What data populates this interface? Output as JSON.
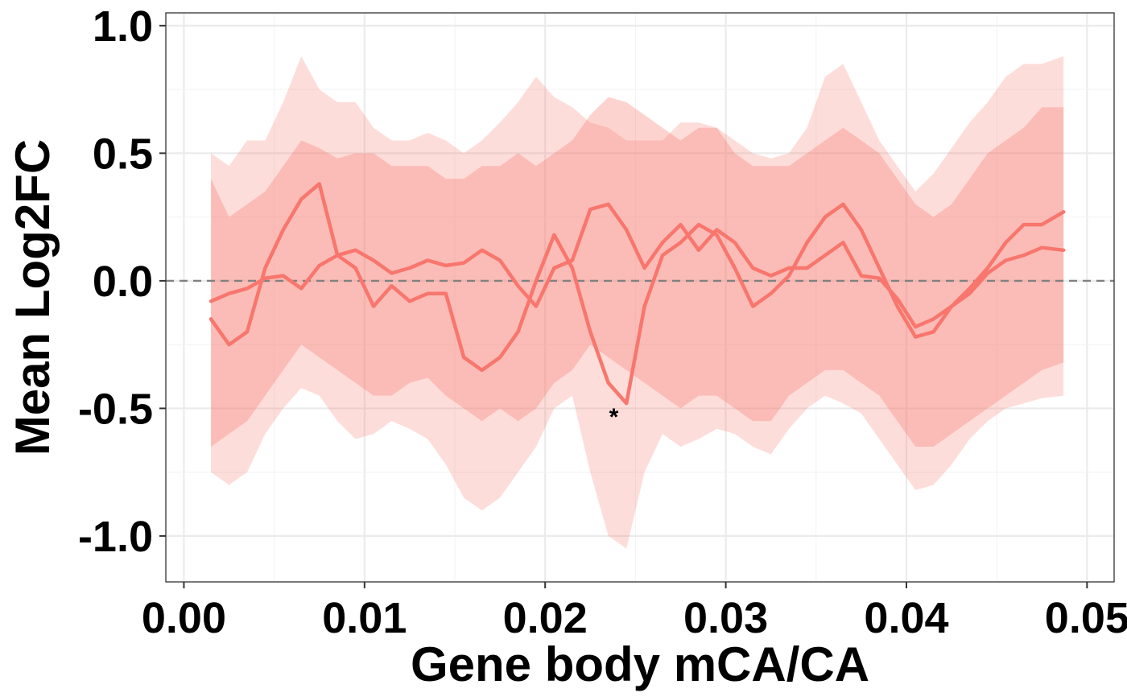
{
  "chart_data": {
    "type": "line",
    "xlabel": "Gene body mCA/CA",
    "ylabel": "Mean Log2FC",
    "xlim": [
      -0.001,
      0.0515
    ],
    "ylim": [
      -1.18,
      1.05
    ],
    "x_ticks": [
      0.0,
      0.01,
      0.02,
      0.03,
      0.04,
      0.05
    ],
    "x_tick_labels": [
      "0.00",
      "0.01",
      "0.02",
      "0.03",
      "0.04",
      "0.05"
    ],
    "y_ticks": [
      -1.0,
      -0.5,
      0.0,
      0.5,
      1.0
    ],
    "y_tick_labels": [
      "-1.0",
      "-0.5",
      "0.0",
      "0.5",
      "1.0"
    ],
    "grid": true,
    "reference_line": {
      "y": 0,
      "style": "dashed",
      "color": "#808080"
    },
    "x": [
      0.0015,
      0.0025,
      0.0035,
      0.0045,
      0.0055,
      0.0065,
      0.0075,
      0.0085,
      0.0095,
      0.0105,
      0.0115,
      0.0125,
      0.0135,
      0.0145,
      0.0155,
      0.0165,
      0.0175,
      0.0185,
      0.0195,
      0.0205,
      0.0215,
      0.0225,
      0.0235,
      0.0245,
      0.0255,
      0.0265,
      0.0275,
      0.0285,
      0.0295,
      0.0305,
      0.0315,
      0.0325,
      0.0335,
      0.0345,
      0.0355,
      0.0365,
      0.0375,
      0.0385,
      0.0395,
      0.0405,
      0.0415,
      0.0425,
      0.0435,
      0.0445,
      0.0455,
      0.0465,
      0.0475,
      0.0487
    ],
    "series": [
      {
        "color": "#F8766D",
        "values": [
          -0.08,
          -0.05,
          -0.03,
          0.01,
          0.02,
          -0.03,
          0.06,
          0.1,
          0.12,
          0.08,
          0.03,
          0.05,
          0.08,
          0.06,
          0.07,
          0.12,
          0.08,
          -0.02,
          -0.1,
          0.05,
          0.08,
          0.28,
          0.3,
          0.2,
          0.05,
          0.15,
          0.22,
          0.12,
          0.2,
          0.15,
          0.05,
          0.02,
          0.05,
          0.05,
          0.1,
          0.15,
          0.02,
          0.01,
          -0.07,
          -0.18,
          -0.15,
          -0.1,
          -0.05,
          0.03,
          0.08,
          0.1,
          0.13,
          0.12
        ],
        "band_inner": {
          "upper": [
            0.4,
            0.25,
            0.3,
            0.35,
            0.45,
            0.55,
            0.52,
            0.48,
            0.5,
            0.5,
            0.45,
            0.45,
            0.45,
            0.4,
            0.4,
            0.45,
            0.45,
            0.5,
            0.45,
            0.5,
            0.55,
            0.65,
            0.72,
            0.7,
            0.65,
            0.6,
            0.55,
            0.6,
            0.6,
            0.5,
            0.45,
            0.45,
            0.45,
            0.5,
            0.55,
            0.6,
            0.55,
            0.5,
            0.4,
            0.3,
            0.25,
            0.3,
            0.4,
            0.5,
            0.55,
            0.6,
            0.68,
            0.68
          ],
          "lower": [
            -0.65,
            -0.6,
            -0.55,
            -0.45,
            -0.35,
            -0.25,
            -0.3,
            -0.35,
            -0.4,
            -0.45,
            -0.45,
            -0.4,
            -0.38,
            -0.45,
            -0.5,
            -0.55,
            -0.5,
            -0.55,
            -0.5,
            -0.4,
            -0.35,
            -0.25,
            -0.3,
            -0.35,
            -0.4,
            -0.45,
            -0.5,
            -0.45,
            -0.45,
            -0.5,
            -0.55,
            -0.55,
            -0.45,
            -0.4,
            -0.35,
            -0.35,
            -0.4,
            -0.45,
            -0.55,
            -0.65,
            -0.65,
            -0.6,
            -0.55,
            -0.5,
            -0.45,
            -0.4,
            -0.35,
            -0.32
          ]
        }
      },
      {
        "color": "#F8766D",
        "values": [
          -0.15,
          -0.25,
          -0.2,
          0.05,
          0.2,
          0.32,
          0.38,
          0.1,
          0.05,
          -0.1,
          -0.02,
          -0.08,
          -0.05,
          -0.05,
          -0.3,
          -0.35,
          -0.3,
          -0.2,
          0.0,
          0.18,
          0.05,
          -0.2,
          -0.4,
          -0.48,
          -0.1,
          0.1,
          0.15,
          0.22,
          0.18,
          0.05,
          -0.1,
          -0.05,
          0.02,
          0.15,
          0.25,
          0.3,
          0.2,
          0.05,
          -0.1,
          -0.22,
          -0.2,
          -0.1,
          -0.03,
          0.05,
          0.15,
          0.22,
          0.22,
          0.27
        ],
        "band_outer": {
          "upper": [
            0.5,
            0.45,
            0.55,
            0.55,
            0.7,
            0.88,
            0.75,
            0.7,
            0.7,
            0.6,
            0.55,
            0.55,
            0.58,
            0.55,
            0.5,
            0.55,
            0.62,
            0.7,
            0.8,
            0.72,
            0.68,
            0.62,
            0.6,
            0.55,
            0.55,
            0.55,
            0.62,
            0.62,
            0.6,
            0.55,
            0.5,
            0.48,
            0.5,
            0.6,
            0.8,
            0.85,
            0.7,
            0.55,
            0.45,
            0.35,
            0.42,
            0.52,
            0.62,
            0.7,
            0.8,
            0.85,
            0.85,
            0.88
          ],
          "lower": [
            -0.75,
            -0.8,
            -0.75,
            -0.6,
            -0.5,
            -0.42,
            -0.45,
            -0.55,
            -0.62,
            -0.6,
            -0.55,
            -0.58,
            -0.62,
            -0.72,
            -0.85,
            -0.9,
            -0.85,
            -0.75,
            -0.65,
            -0.5,
            -0.45,
            -0.75,
            -1.0,
            -1.05,
            -0.75,
            -0.6,
            -0.65,
            -0.62,
            -0.58,
            -0.6,
            -0.65,
            -0.68,
            -0.58,
            -0.5,
            -0.45,
            -0.48,
            -0.52,
            -0.62,
            -0.72,
            -0.82,
            -0.8,
            -0.72,
            -0.62,
            -0.55,
            -0.5,
            -0.48,
            -0.46,
            -0.45
          ]
        }
      }
    ],
    "annotations": [
      {
        "text": "*",
        "x": 0.0238,
        "y": -0.52
      }
    ]
  }
}
